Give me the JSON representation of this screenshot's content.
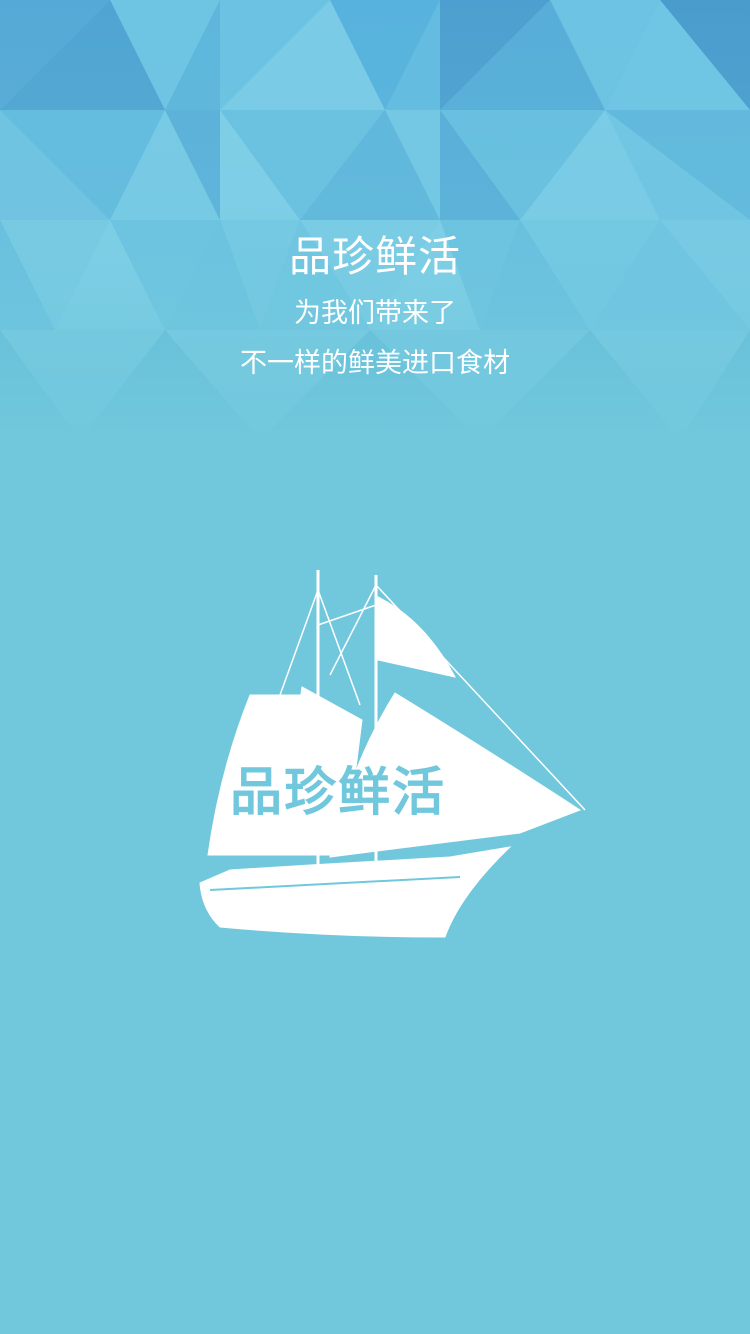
{
  "splash": {
    "title": "品珍鲜活",
    "tagline_line1": "为我们带来了",
    "tagline_line2": "不一样的鲜美进口食材",
    "logo_text": "品珍鲜活",
    "logo_icon": "sailing-ship-icon"
  },
  "colors": {
    "background": "#71c8dc",
    "pattern_dark": "#4fa9d5",
    "pattern_light": "#8fd6e8",
    "foreground": "#ffffff"
  }
}
